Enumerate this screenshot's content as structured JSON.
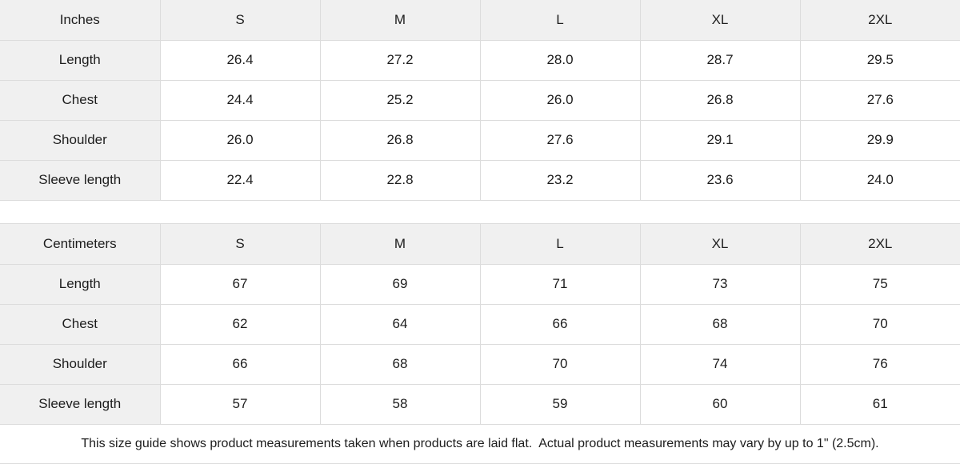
{
  "theme": {
    "header_bg": "#f0f0f0",
    "cell_bg": "#ffffff",
    "border_color": "#dcdcdc",
    "text_color": "#1d1d1d"
  },
  "tables": [
    {
      "unit_label": "Inches",
      "sizes": [
        "S",
        "M",
        "L",
        "XL",
        "2XL"
      ],
      "rows": [
        {
          "label": "Length",
          "values": [
            "26.4",
            "27.2",
            "28.0",
            "28.7",
            "29.5"
          ]
        },
        {
          "label": "Chest",
          "values": [
            "24.4",
            "25.2",
            "26.0",
            "26.8",
            "27.6"
          ]
        },
        {
          "label": "Shoulder",
          "values": [
            "26.0",
            "26.8",
            "27.6",
            "29.1",
            "29.9"
          ]
        },
        {
          "label": "Sleeve length",
          "values": [
            "22.4",
            "22.8",
            "23.2",
            "23.6",
            "24.0"
          ]
        }
      ]
    },
    {
      "unit_label": "Centimeters",
      "sizes": [
        "S",
        "M",
        "L",
        "XL",
        "2XL"
      ],
      "rows": [
        {
          "label": "Length",
          "values": [
            "67",
            "69",
            "71",
            "73",
            "75"
          ]
        },
        {
          "label": "Chest",
          "values": [
            "62",
            "64",
            "66",
            "68",
            "70"
          ]
        },
        {
          "label": "Shoulder",
          "values": [
            "66",
            "68",
            "70",
            "74",
            "76"
          ]
        },
        {
          "label": "Sleeve length",
          "values": [
            "57",
            "58",
            "59",
            "60",
            "61"
          ]
        }
      ]
    }
  ],
  "footer": {
    "note": "This size guide shows product measurements taken when products are laid flat.  Actual product measurements may vary by up to 1\" (2.5cm)."
  }
}
